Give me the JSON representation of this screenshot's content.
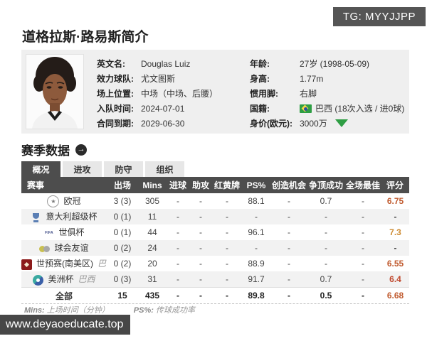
{
  "badges": {
    "tg": "TG: MYYJJPP",
    "watermark": "www.deyaoeducate.top"
  },
  "page_title": "道格拉斯·路易斯简介",
  "profile": {
    "photo_alt": "player-headshot",
    "left": [
      {
        "label": "英文名:",
        "value": "Douglas Luiz"
      },
      {
        "label": "效力球队:",
        "value": "尤文图斯"
      },
      {
        "label": "场上位置:",
        "value": "中场（中场、后腰）"
      },
      {
        "label": "入队时间:",
        "value": "2024-07-01"
      },
      {
        "label": "合同到期:",
        "value": "2029-06-30"
      }
    ],
    "right": [
      {
        "label": "年龄:",
        "value": "27岁 (1998-05-09)"
      },
      {
        "label": "身高:",
        "value": "1.77m"
      },
      {
        "label": "惯用脚:",
        "value": "右脚"
      },
      {
        "label": "国籍:",
        "value": "巴西 (18次入选 / 进0球)",
        "icon": "brazil-flag"
      },
      {
        "label": "身价(欧元):",
        "value": "3000万",
        "icon_after": "value-down-arrow"
      }
    ]
  },
  "section": {
    "title": "赛季数据",
    "arrow_icon": "→"
  },
  "tabs": [
    {
      "label": "概况",
      "active": true
    },
    {
      "label": "进攻",
      "active": false
    },
    {
      "label": "防守",
      "active": false
    },
    {
      "label": "组织",
      "active": false
    }
  ],
  "table": {
    "headers": [
      "赛事",
      "出场",
      "Mins",
      "进球",
      "助攻",
      "红黄牌",
      "PS%",
      "创造机会",
      "争顶成功",
      "全场最佳",
      "评分"
    ],
    "rows": [
      {
        "icon": "champions-league",
        "name": "欧冠",
        "suffix": "",
        "values": [
          "3 (3)",
          "305",
          "-",
          "-",
          "-",
          "88.1",
          "-",
          "0.7",
          "-"
        ],
        "rating": "6.75",
        "rating_color": "#c05a2e"
      },
      {
        "icon": "italy-supercup",
        "name": "意大利超级杯",
        "suffix": "",
        "values": [
          "0 (1)",
          "11",
          "-",
          "-",
          "-",
          "-",
          "-",
          "-",
          "-"
        ],
        "rating": "-",
        "rating_color": ""
      },
      {
        "icon": "fifa-club-world-cup",
        "name": "世俱杯",
        "suffix": "",
        "values": [
          "0 (1)",
          "44",
          "-",
          "-",
          "-",
          "96.1",
          "-",
          "-",
          "-"
        ],
        "rating": "7.3",
        "rating_color": "#cd8b32"
      },
      {
        "icon": "club-friendly",
        "name": "球会友谊",
        "suffix": "",
        "values": [
          "0 (2)",
          "24",
          "-",
          "-",
          "-",
          "-",
          "-",
          "-",
          "-"
        ],
        "rating": "-",
        "rating_color": ""
      },
      {
        "icon": "wc-qualifier-conmebol",
        "name": "世预赛(南美区)",
        "suffix": "巴西",
        "values": [
          "0 (2)",
          "20",
          "-",
          "-",
          "-",
          "88.9",
          "-",
          "-",
          "-"
        ],
        "rating": "6.55",
        "rating_color": "#c05a2e"
      },
      {
        "icon": "copa-america",
        "name": "美洲杯",
        "suffix": "巴西",
        "values": [
          "0 (3)",
          "31",
          "-",
          "-",
          "-",
          "91.7",
          "-",
          "0.7",
          "-"
        ],
        "rating": "6.4",
        "rating_color": "#c0492e"
      }
    ],
    "total": {
      "name": "全部",
      "suffix": "",
      "values": [
        "15",
        "435",
        "-",
        "-",
        "-",
        "89.8",
        "-",
        "0.5",
        "-"
      ],
      "rating": "6.68",
      "rating_color": "#c05a2e"
    }
  },
  "footnotes": {
    "mins_label": "Mins:",
    "mins_desc": "上场时间（分钟）",
    "ps_label": "PS%:",
    "ps_desc": "传球成功率"
  },
  "colors": {
    "accent_green": "#2f9e44",
    "header_dark": "#4d4d4d",
    "panel_gray": "#efefef",
    "rating_orange": "#c05a2e"
  }
}
